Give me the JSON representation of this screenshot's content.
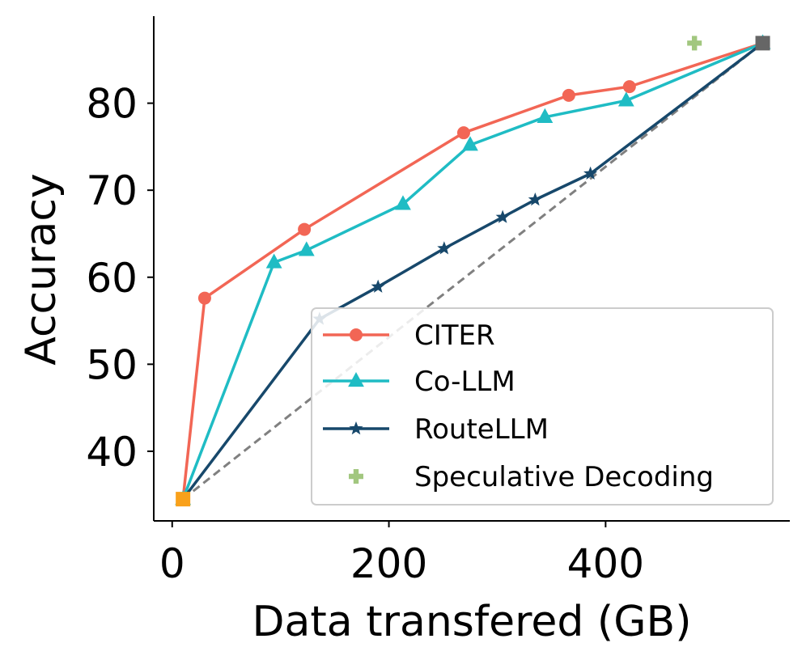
{
  "chart_data": {
    "type": "line",
    "xlabel": "Data transfered (GB)",
    "ylabel": "Accuracy",
    "xlim": [
      -17,
      570
    ],
    "ylim": [
      32,
      90
    ],
    "xticks": [
      0,
      200,
      400
    ],
    "xtick_labels": [
      "0",
      "200",
      "400"
    ],
    "yticks": [
      40,
      50,
      60,
      70,
      80
    ],
    "ytick_labels": [
      "40",
      "50",
      "60",
      "70",
      "80"
    ],
    "grid": false,
    "legend_position": "lower-right",
    "series": [
      {
        "name": "CITER",
        "color": "#f26655",
        "marker": "circle",
        "line": true,
        "x": [
          10,
          30,
          122,
          269,
          366,
          422,
          545
        ],
        "y": [
          34.5,
          57.6,
          65.5,
          76.6,
          80.9,
          81.9,
          86.9
        ]
      },
      {
        "name": "Co-LLM",
        "color": "#1fbcc4",
        "marker": "triangle",
        "line": true,
        "x": [
          10,
          94,
          124,
          213,
          275,
          344,
          419,
          545
        ],
        "y": [
          34.5,
          61.7,
          63.1,
          68.4,
          75.2,
          78.4,
          80.3,
          86.9
        ]
      },
      {
        "name": "RouteLLM",
        "color": "#17486b",
        "marker": "star",
        "line": true,
        "x": [
          10,
          136,
          190,
          251,
          305,
          335,
          386,
          545
        ],
        "y": [
          34.5,
          55.2,
          58.9,
          63.3,
          66.9,
          68.9,
          71.9,
          86.9
        ]
      },
      {
        "name": "Speculative Decoding",
        "color": "#a2c77f",
        "marker": "plus",
        "line": false,
        "x": [
          482
        ],
        "y": [
          86.9
        ]
      }
    ],
    "reference_line": {
      "color": "#808080",
      "style": "dashed",
      "x": [
        10,
        545
      ],
      "y": [
        34.5,
        86.9
      ]
    },
    "endpoints": [
      {
        "role": "start",
        "color": "#f9a11b",
        "marker": "square",
        "x": 10,
        "y": 34.5
      },
      {
        "role": "end",
        "color": "#666666",
        "marker": "square",
        "x": 545,
        "y": 86.9
      }
    ]
  }
}
